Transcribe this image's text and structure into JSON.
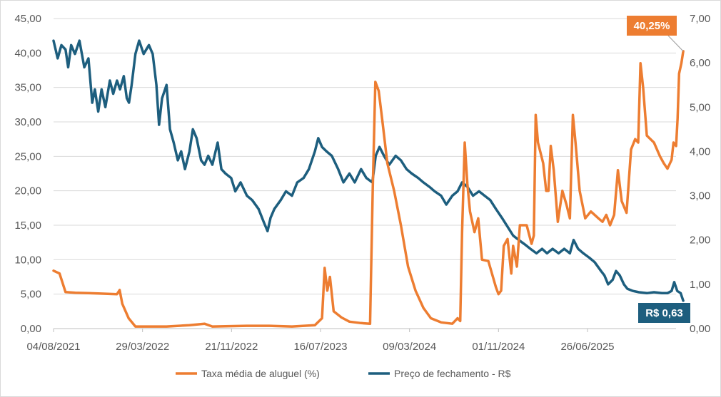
{
  "chart_data": {
    "type": "line",
    "title": "",
    "xlabel": "",
    "ylabel": "",
    "y2label": "",
    "x_ticks": [
      "04/08/2021",
      "29/03/2022",
      "21/11/2022",
      "16/07/2023",
      "09/03/2024",
      "01/11/2024",
      "26/06/2025"
    ],
    "ylim": [
      0,
      45
    ],
    "y_ticks": [
      "0,00",
      "5,00",
      "10,00",
      "15,00",
      "20,00",
      "25,00",
      "30,00",
      "35,00",
      "40,00",
      "45,00"
    ],
    "y2lim": [
      0,
      7
    ],
    "y2_ticks": [
      "0,00",
      "1,00",
      "2,00",
      "3,00",
      "4,00",
      "5,00",
      "6,00",
      "7,00"
    ],
    "grid": true,
    "legend_position": "bottom",
    "series": [
      {
        "name": "Taxa média de aluguel (%)",
        "axis": "left",
        "color": "#ED7D31",
        "points": [
          [
            "2021-08-04",
            8.4
          ],
          [
            "2021-08-20",
            8.0
          ],
          [
            "2021-09-05",
            5.3
          ],
          [
            "2021-10-01",
            5.2
          ],
          [
            "2021-12-01",
            5.1
          ],
          [
            "2022-01-20",
            5.0
          ],
          [
            "2022-01-27",
            5.6
          ],
          [
            "2022-02-03",
            3.6
          ],
          [
            "2022-02-20",
            1.5
          ],
          [
            "2022-03-10",
            0.3
          ],
          [
            "2022-06-01",
            0.3
          ],
          [
            "2022-08-01",
            0.5
          ],
          [
            "2022-09-10",
            0.7
          ],
          [
            "2022-10-01",
            0.3
          ],
          [
            "2023-01-01",
            0.4
          ],
          [
            "2023-03-01",
            0.4
          ],
          [
            "2023-05-01",
            0.3
          ],
          [
            "2023-07-01",
            0.5
          ],
          [
            "2023-07-20",
            1.5
          ],
          [
            "2023-07-27",
            8.8
          ],
          [
            "2023-08-03",
            5.5
          ],
          [
            "2023-08-10",
            7.5
          ],
          [
            "2023-08-20",
            2.5
          ],
          [
            "2023-09-10",
            1.6
          ],
          [
            "2023-10-01",
            1.0
          ],
          [
            "2023-11-01",
            0.8
          ],
          [
            "2023-11-25",
            0.7
          ],
          [
            "2023-12-02",
            20.0
          ],
          [
            "2023-12-09",
            35.8
          ],
          [
            "2023-12-18",
            34.5
          ],
          [
            "2023-12-28",
            30.0
          ],
          [
            "2024-01-10",
            24.0
          ],
          [
            "2024-01-28",
            20.0
          ],
          [
            "2024-02-15",
            15.0
          ],
          [
            "2024-03-05",
            9.0
          ],
          [
            "2024-03-25",
            5.5
          ],
          [
            "2024-04-15",
            3.0
          ],
          [
            "2024-05-05",
            1.5
          ],
          [
            "2024-06-01",
            0.9
          ],
          [
            "2024-07-01",
            0.7
          ],
          [
            "2024-07-15",
            1.5
          ],
          [
            "2024-07-22",
            1.1
          ],
          [
            "2024-07-27",
            14.0
          ],
          [
            "2024-08-03",
            27.0
          ],
          [
            "2024-08-10",
            21.0
          ],
          [
            "2024-08-17",
            17.0
          ],
          [
            "2024-08-29",
            14.0
          ],
          [
            "2024-09-08",
            16.0
          ],
          [
            "2024-09-18",
            10.0
          ],
          [
            "2024-10-05",
            9.8
          ],
          [
            "2024-10-25",
            6.0
          ],
          [
            "2024-11-01",
            5.0
          ],
          [
            "2024-11-08",
            5.5
          ],
          [
            "2024-11-15",
            12.0
          ],
          [
            "2024-11-25",
            13.0
          ],
          [
            "2024-12-05",
            8.0
          ],
          [
            "2024-12-10",
            12.0
          ],
          [
            "2024-12-20",
            9.0
          ],
          [
            "2024-12-28",
            15.0
          ],
          [
            "2025-01-15",
            15.0
          ],
          [
            "2025-01-28",
            12.3
          ],
          [
            "2025-02-03",
            13.5
          ],
          [
            "2025-02-08",
            31.0
          ],
          [
            "2025-02-14",
            27.0
          ],
          [
            "2025-02-28",
            24.0
          ],
          [
            "2025-03-08",
            20.0
          ],
          [
            "2025-03-14",
            20.0
          ],
          [
            "2025-03-20",
            26.5
          ],
          [
            "2025-03-28",
            23.0
          ],
          [
            "2025-04-08",
            15.5
          ],
          [
            "2025-04-20",
            20.0
          ],
          [
            "2025-05-01",
            18.0
          ],
          [
            "2025-05-10",
            16.0
          ],
          [
            "2025-05-18",
            31.0
          ],
          [
            "2025-05-25",
            27.0
          ],
          [
            "2025-06-05",
            20.0
          ],
          [
            "2025-06-20",
            16.0
          ],
          [
            "2025-07-05",
            17.0
          ],
          [
            "2025-07-25",
            16.0
          ],
          [
            "2025-08-05",
            15.5
          ],
          [
            "2025-08-15",
            16.5
          ],
          [
            "2025-08-25",
            15.0
          ],
          [
            "2025-09-05",
            16.5
          ],
          [
            "2025-09-15",
            23.0
          ],
          [
            "2025-09-25",
            18.5
          ],
          [
            "2025-10-08",
            16.8
          ],
          [
            "2025-10-20",
            26.0
          ],
          [
            "2025-10-31",
            27.5
          ],
          [
            "2025-11-08",
            27.0
          ],
          [
            "2025-11-14",
            38.5
          ],
          [
            "2025-11-21",
            35.0
          ],
          [
            "2025-12-01",
            28.0
          ],
          [
            "2025-12-20",
            27.0
          ],
          [
            "2026-01-05",
            25.0
          ],
          [
            "2026-01-15",
            24.0
          ],
          [
            "2026-01-25",
            23.2
          ],
          [
            "2026-02-05",
            24.5
          ],
          [
            "2026-02-10",
            27.0
          ],
          [
            "2026-02-17",
            26.5
          ],
          [
            "2026-02-21",
            30.5
          ],
          [
            "2026-02-25",
            37.0
          ],
          [
            "2026-03-03",
            38.5
          ],
          [
            "2026-03-08",
            40.25
          ]
        ]
      },
      {
        "name": "Preço de fechamento - R$",
        "axis": "right",
        "color": "#1D5E7E",
        "points": [
          [
            "2021-08-04",
            6.5
          ],
          [
            "2021-08-15",
            6.1
          ],
          [
            "2021-08-25",
            6.4
          ],
          [
            "2021-09-05",
            6.3
          ],
          [
            "2021-09-12",
            5.9
          ],
          [
            "2021-09-20",
            6.4
          ],
          [
            "2021-09-30",
            6.2
          ],
          [
            "2021-10-12",
            6.5
          ],
          [
            "2021-10-25",
            5.9
          ],
          [
            "2021-11-05",
            6.1
          ],
          [
            "2021-11-15",
            5.1
          ],
          [
            "2021-11-22",
            5.4
          ],
          [
            "2021-12-01",
            4.9
          ],
          [
            "2021-12-10",
            5.4
          ],
          [
            "2021-12-20",
            5.0
          ],
          [
            "2022-01-01",
            5.6
          ],
          [
            "2022-01-10",
            5.3
          ],
          [
            "2022-01-20",
            5.6
          ],
          [
            "2022-01-28",
            5.4
          ],
          [
            "2022-02-07",
            5.7
          ],
          [
            "2022-02-15",
            5.2
          ],
          [
            "2022-02-21",
            5.1
          ],
          [
            "2022-02-28",
            5.5
          ],
          [
            "2022-03-10",
            6.2
          ],
          [
            "2022-03-20",
            6.5
          ],
          [
            "2022-04-01",
            6.2
          ],
          [
            "2022-04-15",
            6.4
          ],
          [
            "2022-04-25",
            6.2
          ],
          [
            "2022-05-05",
            5.5
          ],
          [
            "2022-05-12",
            4.6
          ],
          [
            "2022-05-20",
            5.2
          ],
          [
            "2022-06-01",
            5.5
          ],
          [
            "2022-06-10",
            4.5
          ],
          [
            "2022-06-20",
            4.2
          ],
          [
            "2022-07-01",
            3.8
          ],
          [
            "2022-07-10",
            4.0
          ],
          [
            "2022-07-20",
            3.6
          ],
          [
            "2022-08-01",
            4.0
          ],
          [
            "2022-08-10",
            4.5
          ],
          [
            "2022-08-20",
            4.3
          ],
          [
            "2022-09-01",
            3.8
          ],
          [
            "2022-09-10",
            3.7
          ],
          [
            "2022-09-20",
            3.9
          ],
          [
            "2022-10-01",
            3.7
          ],
          [
            "2022-10-15",
            4.2
          ],
          [
            "2022-10-25",
            3.6
          ],
          [
            "2022-11-05",
            3.5
          ],
          [
            "2022-11-20",
            3.4
          ],
          [
            "2022-12-01",
            3.1
          ],
          [
            "2022-12-15",
            3.3
          ],
          [
            "2023-01-01",
            3.0
          ],
          [
            "2023-01-15",
            2.9
          ],
          [
            "2023-02-01",
            2.7
          ],
          [
            "2023-02-15",
            2.4
          ],
          [
            "2023-02-25",
            2.2
          ],
          [
            "2023-03-05",
            2.5
          ],
          [
            "2023-03-15",
            2.7
          ],
          [
            "2023-04-01",
            2.9
          ],
          [
            "2023-04-15",
            3.1
          ],
          [
            "2023-05-01",
            3.0
          ],
          [
            "2023-05-15",
            3.3
          ],
          [
            "2023-06-01",
            3.4
          ],
          [
            "2023-06-15",
            3.6
          ],
          [
            "2023-07-01",
            4.0
          ],
          [
            "2023-07-10",
            4.3
          ],
          [
            "2023-07-20",
            4.1
          ],
          [
            "2023-08-01",
            4.0
          ],
          [
            "2023-08-15",
            3.9
          ],
          [
            "2023-09-01",
            3.6
          ],
          [
            "2023-09-15",
            3.3
          ],
          [
            "2023-10-01",
            3.5
          ],
          [
            "2023-10-15",
            3.3
          ],
          [
            "2023-11-01",
            3.6
          ],
          [
            "2023-11-15",
            3.4
          ],
          [
            "2023-12-01",
            3.3
          ],
          [
            "2023-12-10",
            3.9
          ],
          [
            "2023-12-20",
            4.1
          ],
          [
            "2024-01-01",
            3.9
          ],
          [
            "2024-01-15",
            3.7
          ],
          [
            "2024-02-01",
            3.9
          ],
          [
            "2024-02-15",
            3.8
          ],
          [
            "2024-03-01",
            3.6
          ],
          [
            "2024-03-15",
            3.5
          ],
          [
            "2024-04-01",
            3.4
          ],
          [
            "2024-04-15",
            3.3
          ],
          [
            "2024-05-01",
            3.2
          ],
          [
            "2024-05-15",
            3.1
          ],
          [
            "2024-06-01",
            3.0
          ],
          [
            "2024-06-15",
            2.8
          ],
          [
            "2024-07-01",
            3.0
          ],
          [
            "2024-07-15",
            3.1
          ],
          [
            "2024-07-27",
            3.3
          ],
          [
            "2024-08-10",
            3.2
          ],
          [
            "2024-08-25",
            3.0
          ],
          [
            "2024-09-10",
            3.1
          ],
          [
            "2024-09-25",
            3.0
          ],
          [
            "2024-10-10",
            2.9
          ],
          [
            "2024-10-25",
            2.7
          ],
          [
            "2024-11-10",
            2.5
          ],
          [
            "2024-11-25",
            2.3
          ],
          [
            "2024-12-10",
            2.1
          ],
          [
            "2024-12-25",
            2.0
          ],
          [
            "2025-01-10",
            1.9
          ],
          [
            "2025-01-25",
            1.8
          ],
          [
            "2025-02-10",
            1.7
          ],
          [
            "2025-02-25",
            1.8
          ],
          [
            "2025-03-10",
            1.7
          ],
          [
            "2025-03-25",
            1.8
          ],
          [
            "2025-04-10",
            1.7
          ],
          [
            "2025-04-25",
            1.8
          ],
          [
            "2025-05-10",
            1.7
          ],
          [
            "2025-05-20",
            2.0
          ],
          [
            "2025-06-01",
            1.8
          ],
          [
            "2025-06-15",
            1.7
          ],
          [
            "2025-07-01",
            1.6
          ],
          [
            "2025-07-15",
            1.5
          ],
          [
            "2025-08-01",
            1.3
          ],
          [
            "2025-08-10",
            1.2
          ],
          [
            "2025-08-20",
            1.0
          ],
          [
            "2025-09-01",
            1.1
          ],
          [
            "2025-09-10",
            1.3
          ],
          [
            "2025-09-20",
            1.2
          ],
          [
            "2025-10-01",
            1.0
          ],
          [
            "2025-10-10",
            0.9
          ],
          [
            "2025-10-25",
            0.85
          ],
          [
            "2025-11-10",
            0.82
          ],
          [
            "2025-12-01",
            0.8
          ],
          [
            "2025-12-20",
            0.82
          ],
          [
            "2026-01-10",
            0.8
          ],
          [
            "2026-01-25",
            0.8
          ],
          [
            "2026-02-05",
            0.85
          ],
          [
            "2026-02-12",
            1.05
          ],
          [
            "2026-02-20",
            0.85
          ],
          [
            "2026-03-01",
            0.8
          ],
          [
            "2026-03-08",
            0.63
          ]
        ]
      }
    ],
    "annotations": [
      {
        "series": 0,
        "label": "40,25%",
        "color": "#ED7D31"
      },
      {
        "series": 1,
        "label": "R$ 0,63",
        "color": "#1D5E7E"
      }
    ]
  }
}
